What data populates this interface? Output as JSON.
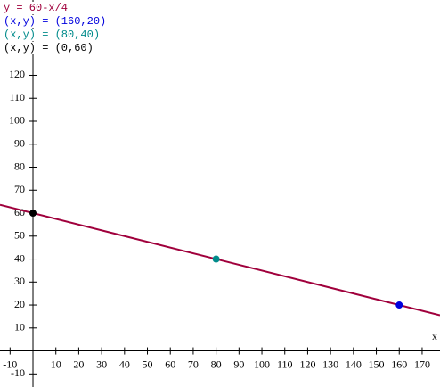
{
  "chart_data": {
    "type": "line",
    "xlabel": "x",
    "xlim": [
      -14.4,
      177.8
    ],
    "ylim": [
      -15.7,
      152.8
    ],
    "xticks": [
      -10,
      10,
      20,
      30,
      40,
      50,
      60,
      70,
      80,
      90,
      100,
      110,
      120,
      130,
      140,
      150,
      160,
      170
    ],
    "yticks": [
      -10,
      10,
      20,
      30,
      40,
      50,
      60,
      70,
      80,
      90,
      100,
      110,
      120
    ],
    "legend": "top-left",
    "series": [
      {
        "name": "y = 60-x/4",
        "color": "#a0003c",
        "x": [
          -14.4,
          177.8
        ],
        "values": [
          63.6,
          15.55
        ]
      },
      {
        "name": "(x,y) = (160,20)",
        "color": "#0000dd",
        "x": [
          160
        ],
        "values": [
          20
        ]
      },
      {
        "name": "(x,y) = (80,40)",
        "color": "#008b8b",
        "x": [
          80
        ],
        "values": [
          40
        ]
      },
      {
        "name": "(x,y) = (0,60)",
        "color": "#000000",
        "x": [
          0
        ],
        "values": [
          60
        ]
      }
    ]
  }
}
